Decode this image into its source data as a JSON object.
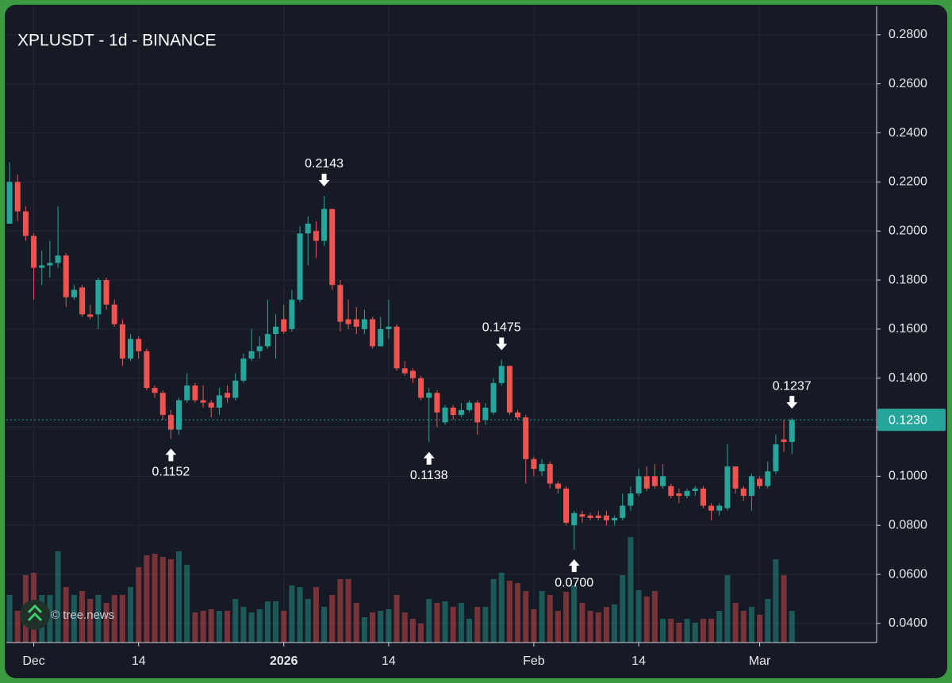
{
  "chart_data": {
    "type": "candlestick",
    "title": "XPLUSDT - 1d - BINANCE",
    "watermark": "© tree.news",
    "up_color": "#26a69a",
    "down_color": "#ef5350",
    "grid": true,
    "ylim": [
      0.0322,
      0.2916
    ],
    "xlim": [
      -0.4,
      107.5
    ],
    "yticks": [
      {
        "value": 0.28,
        "label": "0.2800"
      },
      {
        "value": 0.26,
        "label": "0.2600"
      },
      {
        "value": 0.24,
        "label": "0.2400"
      },
      {
        "value": 0.22,
        "label": "0.2200"
      },
      {
        "value": 0.2,
        "label": "0.2000"
      },
      {
        "value": 0.18,
        "label": "0.1800"
      },
      {
        "value": 0.16,
        "label": "0.1600"
      },
      {
        "value": 0.14,
        "label": "0.1400"
      },
      {
        "value": 0.12,
        "label": "0.1200"
      },
      {
        "value": 0.1,
        "label": "0.1000"
      },
      {
        "value": 0.08,
        "label": "0.0800"
      },
      {
        "value": 0.06,
        "label": "0.0600"
      },
      {
        "value": 0.04,
        "label": "0.0400"
      }
    ],
    "xticks": [
      {
        "value": 3,
        "label": "Dec"
      },
      {
        "value": 16,
        "label": "14"
      },
      {
        "value": 34,
        "label": "2026",
        "weight": "bold"
      },
      {
        "value": 47,
        "label": "14"
      },
      {
        "value": 65,
        "label": "Feb"
      },
      {
        "value": 78,
        "label": "14"
      },
      {
        "value": 93,
        "label": "Mar"
      }
    ],
    "last_price": {
      "value": 0.123,
      "label": "0.1230"
    },
    "annotations": [
      {
        "value": 0.2143,
        "label": "0.2143"
      },
      {
        "value": 0.1152,
        "label": "0.1152"
      },
      {
        "value": 0.1138,
        "label": "0.1138"
      },
      {
        "value": 0.1475,
        "label": "0.1475"
      },
      {
        "value": 0.07,
        "label": "0.0700"
      },
      {
        "value": 0.1237,
        "label": "0.1237"
      }
    ],
    "candles": {
      "open": [
        0.203,
        0.22,
        0.208,
        0.198,
        0.185,
        0.186,
        0.187,
        0.19,
        0.173,
        0.177,
        0.166,
        0.166,
        0.18,
        0.17,
        0.162,
        0.148,
        0.156,
        0.151,
        0.136,
        0.134,
        0.125,
        0.119,
        0.131,
        0.137,
        0.131,
        0.13,
        0.128,
        0.134,
        0.132,
        0.139,
        0.148,
        0.151,
        0.153,
        0.158,
        0.164,
        0.16,
        0.172,
        0.199,
        0.2,
        0.196,
        0.209,
        0.178,
        0.164,
        0.164,
        0.16,
        0.164,
        0.153,
        0.16,
        0.161,
        0.144,
        0.143,
        0.14,
        0.132,
        0.134,
        0.122,
        0.128,
        0.125,
        0.127,
        0.13,
        0.123,
        0.126,
        0.138,
        0.145,
        0.126,
        0.124,
        0.107,
        0.102,
        0.105,
        0.097,
        0.095,
        0.08,
        0.0845,
        0.084,
        0.084,
        0.084,
        0.082,
        0.083,
        0.088,
        0.093,
        0.1,
        0.1,
        0.096,
        0.096,
        0.093,
        0.092,
        0.094,
        0.095,
        0.088,
        0.086,
        0.087,
        0.104,
        0.095,
        0.092,
        0.099,
        0.096,
        0.102,
        0.115,
        0.114
      ],
      "high": [
        0.228,
        0.223,
        0.21,
        0.199,
        0.192,
        0.196,
        0.21,
        0.191,
        0.178,
        0.178,
        0.17,
        0.181,
        0.181,
        0.172,
        0.164,
        0.158,
        0.157,
        0.152,
        0.137,
        0.135,
        0.127,
        0.132,
        0.142,
        0.138,
        0.137,
        0.131,
        0.136,
        0.137,
        0.142,
        0.15,
        0.16,
        0.157,
        0.172,
        0.166,
        0.17,
        0.176,
        0.202,
        0.206,
        0.204,
        0.2143,
        0.209,
        0.18,
        0.172,
        0.169,
        0.168,
        0.165,
        0.165,
        0.172,
        0.162,
        0.147,
        0.144,
        0.141,
        0.136,
        0.135,
        0.129,
        0.129,
        0.13,
        0.131,
        0.131,
        0.13,
        0.14,
        0.1475,
        0.145,
        0.127,
        0.125,
        0.108,
        0.107,
        0.106,
        0.098,
        0.096,
        0.086,
        0.086,
        0.085,
        0.086,
        0.086,
        0.084,
        0.093,
        0.096,
        0.103,
        0.104,
        0.105,
        0.105,
        0.097,
        0.095,
        0.095,
        0.096,
        0.096,
        0.089,
        0.089,
        0.113,
        0.104,
        0.096,
        0.101,
        0.1,
        0.106,
        0.117,
        0.123,
        0.1237
      ],
      "low": [
        0.203,
        0.204,
        0.196,
        0.172,
        0.178,
        0.181,
        0.185,
        0.169,
        0.172,
        0.165,
        0.164,
        0.16,
        0.168,
        0.161,
        0.145,
        0.147,
        0.148,
        0.135,
        0.132,
        0.123,
        0.1152,
        0.117,
        0.13,
        0.13,
        0.128,
        0.124,
        0.125,
        0.13,
        0.131,
        0.138,
        0.147,
        0.148,
        0.152,
        0.148,
        0.158,
        0.159,
        0.171,
        0.186,
        0.189,
        0.194,
        0.176,
        0.159,
        0.16,
        0.158,
        0.158,
        0.152,
        0.153,
        0.156,
        0.143,
        0.141,
        0.138,
        0.131,
        0.1138,
        0.12,
        0.121,
        0.123,
        0.124,
        0.126,
        0.117,
        0.121,
        0.125,
        0.137,
        0.125,
        0.123,
        0.097,
        0.1,
        0.1,
        0.095,
        0.093,
        0.08,
        0.07,
        0.081,
        0.082,
        0.082,
        0.08,
        0.08,
        0.082,
        0.086,
        0.092,
        0.094,
        0.095,
        0.095,
        0.091,
        0.089,
        0.091,
        0.092,
        0.087,
        0.082,
        0.084,
        0.086,
        0.093,
        0.09,
        0.086,
        0.095,
        0.095,
        0.101,
        0.11,
        0.109
      ],
      "close": [
        0.22,
        0.208,
        0.198,
        0.185,
        0.186,
        0.187,
        0.19,
        0.173,
        0.176,
        0.166,
        0.165,
        0.18,
        0.17,
        0.162,
        0.148,
        0.156,
        0.151,
        0.136,
        0.134,
        0.125,
        0.119,
        0.131,
        0.137,
        0.131,
        0.13,
        0.128,
        0.133,
        0.132,
        0.139,
        0.148,
        0.151,
        0.153,
        0.158,
        0.161,
        0.159,
        0.172,
        0.199,
        0.203,
        0.196,
        0.209,
        0.178,
        0.163,
        0.162,
        0.161,
        0.164,
        0.153,
        0.16,
        0.161,
        0.144,
        0.142,
        0.14,
        0.132,
        0.134,
        0.126,
        0.128,
        0.125,
        0.127,
        0.13,
        0.122,
        0.128,
        0.138,
        0.145,
        0.126,
        0.124,
        0.107,
        0.103,
        0.105,
        0.097,
        0.095,
        0.081,
        0.085,
        0.0835,
        0.083,
        0.083,
        0.082,
        0.083,
        0.088,
        0.093,
        0.1,
        0.095,
        0.096,
        0.1,
        0.092,
        0.092,
        0.094,
        0.095,
        0.088,
        0.086,
        0.088,
        0.104,
        0.095,
        0.092,
        0.1,
        0.096,
        0.102,
        0.113,
        0.114,
        0.123
      ],
      "volume": [
        60,
        40,
        85,
        88,
        60,
        60,
        115,
        70,
        60,
        65,
        55,
        60,
        50,
        60,
        60,
        70,
        95,
        110,
        112,
        108,
        105,
        115,
        98,
        38,
        40,
        42,
        40,
        40,
        55,
        45,
        38,
        42,
        52,
        52,
        40,
        72,
        70,
        55,
        70,
        45,
        60,
        80,
        80,
        50,
        32,
        38,
        40,
        42,
        60,
        38,
        30,
        24,
        55,
        50,
        52,
        45,
        50,
        30,
        45,
        45,
        80,
        88,
        78,
        75,
        65,
        42,
        65,
        60,
        40,
        64,
        72,
        50,
        40,
        38,
        45,
        48,
        85,
        133,
        66,
        58,
        65,
        30,
        30,
        25,
        30,
        25,
        30,
        30,
        40,
        85,
        50,
        40,
        45,
        35,
        55,
        105,
        85,
        40
      ]
    }
  }
}
